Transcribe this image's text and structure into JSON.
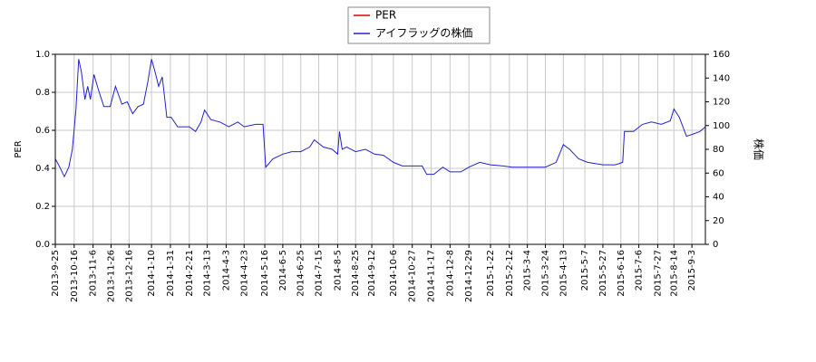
{
  "chart_data": {
    "type": "line",
    "ylabel": "PER",
    "y2label": "株価",
    "legend": "top-center",
    "grid": true,
    "xlim": [
      "2013-9-25",
      "2015-9-18"
    ],
    "xticks": [
      "2013-9-25",
      "2013-10-16",
      "2013-11-6",
      "2013-11-26",
      "2013-12-16",
      "2014-1-10",
      "2014-1-31",
      "2014-2-21",
      "2014-3-13",
      "2014-4-3",
      "2014-4-23",
      "2014-5-16",
      "2014-6-5",
      "2014-6-25",
      "2014-7-15",
      "2014-8-5",
      "2014-8-25",
      "2014-9-12",
      "2014-10-6",
      "2014-10-27",
      "2014-11-17",
      "2014-12-8",
      "2014-12-29",
      "2015-1-22",
      "2015-2-12",
      "2015-3-4",
      "2015-3-24",
      "2015-4-13",
      "2015-5-7",
      "2015-5-27",
      "2015-6-16",
      "2015-7-6",
      "2015-7-27",
      "2015-8-14",
      "2015-9-3"
    ],
    "ylim": [
      0,
      1
    ],
    "yticks": [
      {
        "value": 0,
        "label": "0.0"
      },
      {
        "value": 0.2,
        "label": "0.2"
      },
      {
        "value": 0.4,
        "label": "0.4"
      },
      {
        "value": 0.6,
        "label": "0.6"
      },
      {
        "value": 0.8,
        "label": "0.8"
      },
      {
        "value": 1,
        "label": "1.0"
      }
    ],
    "y2lim": [
      0,
      160
    ],
    "y2ticks": [
      0,
      20,
      40,
      60,
      80,
      100,
      120,
      140,
      160
    ],
    "series": [
      {
        "name": "PER",
        "color": "#dd0000",
        "x": [],
        "values": []
      },
      {
        "name": "アイフラッグの株価",
        "color": "#2222cc",
        "axis": "y2",
        "x": [
          "2013-9-25",
          "2013-9-30",
          "2013-10-5",
          "2013-10-10",
          "2013-10-14",
          "2013-10-18",
          "2013-10-21",
          "2013-10-24",
          "2013-10-28",
          "2013-10-31",
          "2013-11-3",
          "2013-11-7",
          "2013-11-12",
          "2013-11-18",
          "2013-11-25",
          "2013-12-1",
          "2013-12-8",
          "2013-12-14",
          "2013-12-20",
          "2013-12-26",
          "2014-1-1",
          "2014-1-6",
          "2014-1-10",
          "2014-1-14",
          "2014-1-18",
          "2014-1-22",
          "2014-1-27",
          "2014-2-1",
          "2014-2-8",
          "2014-2-21",
          "2014-2-28",
          "2014-3-6",
          "2014-3-10",
          "2014-3-17",
          "2014-3-27",
          "2014-4-6",
          "2014-4-16",
          "2014-4-23",
          "2014-5-6",
          "2014-5-14",
          "2014-5-17",
          "2014-5-25",
          "2014-6-5",
          "2014-6-15",
          "2014-6-25",
          "2014-7-5",
          "2014-7-10",
          "2014-7-20",
          "2014-7-30",
          "2014-8-5",
          "2014-8-7",
          "2014-8-10",
          "2014-8-15",
          "2014-8-25",
          "2014-9-5",
          "2014-9-15",
          "2014-9-25",
          "2014-10-6",
          "2014-10-16",
          "2014-10-27",
          "2014-11-7",
          "2014-11-12",
          "2014-11-20",
          "2014-11-30",
          "2014-12-8",
          "2014-12-20",
          "2014-12-29",
          "2015-1-10",
          "2015-1-22",
          "2015-2-5",
          "2015-2-15",
          "2015-3-4",
          "2015-3-24",
          "2015-4-5",
          "2015-4-13",
          "2015-4-20",
          "2015-4-30",
          "2015-5-10",
          "2015-5-27",
          "2015-6-10",
          "2015-6-18",
          "2015-6-20",
          "2015-6-30",
          "2015-7-10",
          "2015-7-20",
          "2015-7-31",
          "2015-8-10",
          "2015-8-14",
          "2015-8-20",
          "2015-8-28",
          "2015-9-5",
          "2015-9-12",
          "2015-9-18"
        ],
        "values": [
          72,
          65,
          57,
          65,
          80,
          114,
          156,
          145,
          122,
          133,
          122,
          143,
          130,
          116,
          116,
          133,
          118,
          120,
          110,
          116,
          118,
          137,
          156,
          145,
          133,
          141,
          107,
          107,
          99,
          99,
          95,
          103,
          113,
          105,
          103,
          99,
          103,
          99,
          101,
          101,
          65,
          72,
          76,
          78,
          78,
          82,
          88,
          82,
          80,
          76,
          95,
          80,
          82,
          78,
          80,
          76,
          75,
          69,
          66,
          66,
          66,
          59,
          59,
          65,
          61,
          61,
          65,
          69,
          67,
          66,
          65,
          65,
          65,
          69,
          84,
          80,
          72,
          69,
          67,
          67,
          69,
          95,
          95,
          101,
          103,
          101,
          104,
          114,
          107,
          91,
          93,
          95,
          99
        ]
      }
    ]
  }
}
